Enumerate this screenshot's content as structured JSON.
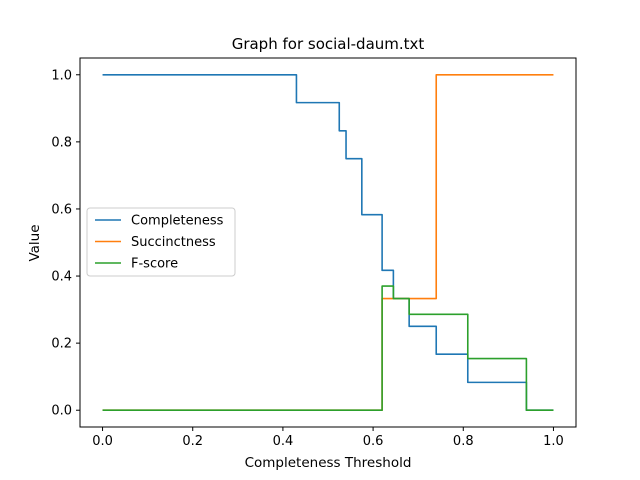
{
  "chart_data": {
    "type": "line",
    "title": "Graph for social-daum.txt",
    "xlabel": "Completeness Threshold",
    "ylabel": "Value",
    "xlim": [
      -0.05,
      1.05
    ],
    "ylim": [
      -0.05,
      1.05
    ],
    "xticks": [
      0.0,
      0.2,
      0.4,
      0.6,
      0.8,
      1.0
    ],
    "yticks": [
      0.0,
      0.2,
      0.4,
      0.6,
      0.8,
      1.0
    ],
    "xtick_labels": [
      "0.0",
      "0.2",
      "0.4",
      "0.6",
      "0.8",
      "1.0"
    ],
    "ytick_labels": [
      "0.0",
      "0.2",
      "0.4",
      "0.6",
      "0.8",
      "1.0"
    ],
    "grid": false,
    "legend_position": "center-left",
    "series": [
      {
        "name": "Completeness",
        "color": "#1f77b4",
        "x": [
          0.0,
          0.43,
          0.43,
          0.525,
          0.525,
          0.54,
          0.54,
          0.575,
          0.575,
          0.62,
          0.62,
          0.645,
          0.645,
          0.68,
          0.68,
          0.74,
          0.74,
          0.81,
          0.81,
          0.94,
          0.94,
          1.0
        ],
        "y": [
          1.0,
          1.0,
          0.917,
          0.917,
          0.833,
          0.833,
          0.75,
          0.75,
          0.583,
          0.583,
          0.417,
          0.417,
          0.333,
          0.333,
          0.25,
          0.25,
          0.167,
          0.167,
          0.083,
          0.083,
          0.0,
          0.0
        ]
      },
      {
        "name": "Succinctness",
        "color": "#ff7f0e",
        "x": [
          0.0,
          0.62,
          0.62,
          0.74,
          0.74,
          1.0
        ],
        "y": [
          0.0,
          0.0,
          0.333,
          0.333,
          1.0,
          1.0
        ]
      },
      {
        "name": "F-score",
        "color": "#2ca02c",
        "x": [
          0.0,
          0.62,
          0.62,
          0.645,
          0.645,
          0.68,
          0.68,
          0.81,
          0.81,
          0.94,
          0.94,
          1.0
        ],
        "y": [
          0.0,
          0.0,
          0.37,
          0.37,
          0.333,
          0.333,
          0.286,
          0.286,
          0.154,
          0.154,
          0.0,
          0.0
        ]
      }
    ]
  }
}
